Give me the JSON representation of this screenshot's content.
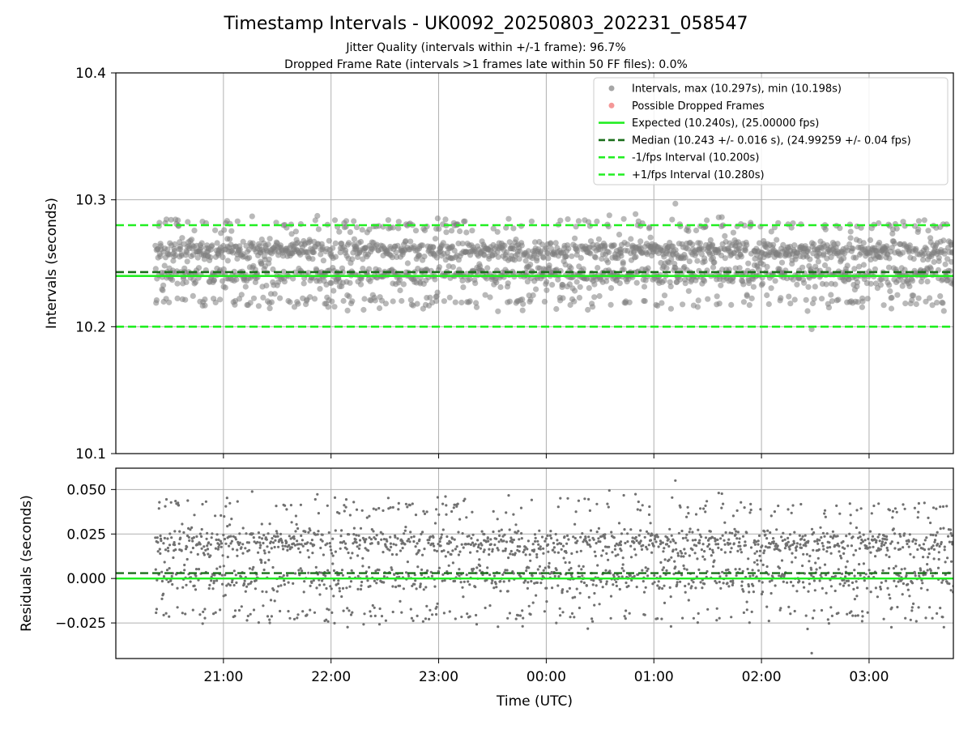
{
  "figure": {
    "title": "Timestamp Intervals - UK0092_20250803_202231_058547",
    "subtitle_1": "Jitter Quality (intervals within +/-1 frame): 96.7%",
    "subtitle_2": "Dropped Frame Rate (intervals >1 frames late within 50 FF files): 0.0%"
  },
  "chart_data": [
    {
      "type": "scatter",
      "panel": "intervals",
      "ylabel": "Intervals (seconds)",
      "xlabel": "",
      "xlim": [
        "20:00",
        "03:47"
      ],
      "ylim": [
        10.1,
        10.4
      ],
      "yticks": [
        "10.1",
        "10.2",
        "10.3",
        "10.4"
      ],
      "xticks": [
        "21:00",
        "22:00",
        "23:00",
        "00:00",
        "01:00",
        "02:00",
        "03:00"
      ],
      "grid": true,
      "legend_position": "upper-right",
      "data_time_range": [
        "20:22",
        "03:47"
      ],
      "interval_bands": [
        {
          "value": 10.26,
          "share": 0.45,
          "spread": 0.004
        },
        {
          "value": 10.24,
          "share": 0.3,
          "spread": 0.004
        },
        {
          "value": 10.22,
          "share": 0.09,
          "spread": 0.003
        },
        {
          "value": 10.28,
          "share": 0.07,
          "spread": 0.003
        },
        {
          "value": 10.25,
          "share": 0.09,
          "spread": 0.012
        }
      ],
      "series": [
        {
          "name": "Intervals, max (10.297s), min (10.198s)",
          "kind": "points",
          "color": "#808080",
          "max": 10.297,
          "min": 10.198
        },
        {
          "name": "Possible Dropped Frames",
          "kind": "points",
          "color": "#f06b6b",
          "values": []
        },
        {
          "name": "Expected (10.240s), (25.00000 fps)",
          "kind": "hline",
          "y": 10.24,
          "color": "#22ee22",
          "style": "solid"
        },
        {
          "name": "Median (10.243 +/- 0.016 s), (24.99259 +/- 0.04 fps)",
          "kind": "hline",
          "y": 10.243,
          "color": "#1a6e1a",
          "style": "dashed"
        },
        {
          "name": "-1/fps Interval (10.200s)",
          "kind": "hline",
          "y": 10.2,
          "color": "#22ee22",
          "style": "dashed"
        },
        {
          "name": "+1/fps Interval (10.280s)",
          "kind": "hline",
          "y": 10.28,
          "color": "#22ee22",
          "style": "dashed"
        }
      ]
    },
    {
      "type": "scatter",
      "panel": "residuals",
      "ylabel": "Residuals (seconds)",
      "xlabel": "Time (UTC)",
      "xlim": [
        "20:00",
        "03:47"
      ],
      "ylim": [
        -0.045,
        0.062
      ],
      "yticks": [
        "−0.025",
        "0.000",
        "0.025",
        "0.050"
      ],
      "xticks": [
        "21:00",
        "22:00",
        "23:00",
        "00:00",
        "01:00",
        "02:00",
        "03:00"
      ],
      "grid": true,
      "series": [
        {
          "name": "Residuals",
          "kind": "points",
          "color": "#707070",
          "max": 0.057,
          "min": -0.042
        },
        {
          "name": "Zero",
          "kind": "hline",
          "y": 0.0,
          "color": "#22ee22",
          "style": "solid"
        },
        {
          "name": "Median offset",
          "kind": "hline",
          "y": 0.003,
          "color": "#1a6e1a",
          "style": "dashed"
        }
      ]
    }
  ]
}
